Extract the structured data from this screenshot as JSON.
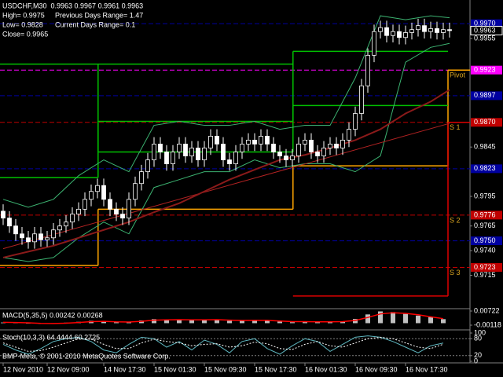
{
  "chart_data": [
    {
      "type": "candlestick",
      "title": "USDCHF,M30  0.9963 0.9967 0.9961 0.9963",
      "info": [
        "High= 0.9975",
        "Previous Days Range= 1.47",
        "Low= 0.9828",
        "Current Days Range= 0.1",
        "Close= 0.9965"
      ],
      "xlim": [
        -0.5,
        74.25
      ],
      "xticks": [
        {
          "value": 0,
          "label": "12 Nov 2010"
        },
        {
          "value": 7,
          "label": "12 Nov 09:00"
        },
        {
          "value": 16,
          "label": "14 Nov 17:30"
        },
        {
          "value": 24,
          "label": "15 Nov 01:30"
        },
        {
          "value": 32,
          "label": "15 Nov 09:30"
        },
        {
          "value": 40,
          "label": "15 Nov 17:30"
        },
        {
          "value": 48,
          "label": "16 Nov 01:30"
        },
        {
          "value": 56,
          "label": "16 Nov 09:30"
        },
        {
          "value": 64,
          "label": "16 Nov 17:30"
        }
      ],
      "ylim": [
        0.9682,
        0.9994
      ],
      "yticks": [
        0.9955,
        0.9845,
        0.9795,
        0.9765,
        {
          "value": 0.974,
          "label": "0.9740"
        },
        0.9715
      ],
      "up_color": "#000000",
      "down_color": "#ffffff",
      "outline_color": "#ffffff",
      "open": [
        0.978,
        0.9773,
        0.9765,
        0.9757,
        0.9753,
        0.9749,
        0.9757,
        0.9751,
        0.9753,
        0.9761,
        0.9765,
        0.9769,
        0.9777,
        0.9782,
        0.9792,
        0.98,
        0.9806,
        0.9792,
        0.9782,
        0.9777,
        0.9773,
        0.9792,
        0.9808,
        0.982,
        0.9832,
        0.9848,
        0.984,
        0.9828,
        0.984,
        0.9848,
        0.9836,
        0.9844,
        0.9832,
        0.9844,
        0.9856,
        0.9848,
        0.9832,
        0.9828,
        0.984,
        0.9848,
        0.9852,
        0.9848,
        0.9856,
        0.9848,
        0.984,
        0.9836,
        0.9832,
        0.9836,
        0.9848,
        0.9852,
        0.984,
        0.9836,
        0.9844,
        0.9848,
        0.9844,
        0.9852,
        0.9863,
        0.9879,
        0.9907,
        0.9938,
        0.9962,
        0.9966,
        0.9958,
        0.9962,
        0.9956,
        0.9961,
        0.9964,
        0.9968,
        0.9962,
        0.9965,
        0.9961,
        0.9964
      ],
      "high": [
        0.9787,
        0.978,
        0.9772,
        0.9764,
        0.976,
        0.9764,
        0.9764,
        0.976,
        0.9768,
        0.9772,
        0.9776,
        0.9784,
        0.9789,
        0.9799,
        0.9807,
        0.9813,
        0.9813,
        0.9799,
        0.9789,
        0.9784,
        0.9799,
        0.9815,
        0.9827,
        0.9839,
        0.9855,
        0.9855,
        0.9847,
        0.9847,
        0.9855,
        0.9855,
        0.9851,
        0.9851,
        0.9851,
        0.9863,
        0.9863,
        0.9855,
        0.9839,
        0.9847,
        0.9855,
        0.9859,
        0.9859,
        0.9863,
        0.9863,
        0.9855,
        0.9847,
        0.9843,
        0.9843,
        0.9855,
        0.9859,
        0.9859,
        0.9847,
        0.9851,
        0.9855,
        0.9855,
        0.9859,
        0.987,
        0.9886,
        0.9914,
        0.9945,
        0.9969,
        0.9973,
        0.9973,
        0.9969,
        0.9969,
        0.9968,
        0.9971,
        0.9975,
        0.9975,
        0.9972,
        0.9972,
        0.9971,
        0.9971
      ],
      "low": [
        0.9766,
        0.9758,
        0.975,
        0.9746,
        0.9742,
        0.9742,
        0.9744,
        0.9744,
        0.9746,
        0.9754,
        0.9758,
        0.9762,
        0.977,
        0.9775,
        0.9785,
        0.9793,
        0.9785,
        0.9775,
        0.977,
        0.9766,
        0.9766,
        0.9785,
        0.9801,
        0.9813,
        0.9825,
        0.9833,
        0.9821,
        0.9821,
        0.9833,
        0.9829,
        0.9829,
        0.9825,
        0.9825,
        0.9837,
        0.9841,
        0.9825,
        0.9821,
        0.9821,
        0.9833,
        0.9841,
        0.9841,
        0.9841,
        0.9841,
        0.9833,
        0.9829,
        0.9825,
        0.9825,
        0.9829,
        0.9841,
        0.9833,
        0.9829,
        0.9829,
        0.9837,
        0.9837,
        0.9837,
        0.9845,
        0.9856,
        0.9872,
        0.99,
        0.9931,
        0.9955,
        0.9951,
        0.9951,
        0.9949,
        0.9949,
        0.9954,
        0.9957,
        0.9955,
        0.9955,
        0.9954,
        0.9954,
        0.9956
      ],
      "close": [
        0.9773,
        0.9765,
        0.9757,
        0.9753,
        0.9749,
        0.9757,
        0.9751,
        0.9753,
        0.9761,
        0.9765,
        0.9769,
        0.9777,
        0.9782,
        0.9792,
        0.98,
        0.9806,
        0.9792,
        0.9782,
        0.9777,
        0.9773,
        0.9792,
        0.9808,
        0.982,
        0.9832,
        0.9848,
        0.984,
        0.9828,
        0.984,
        0.9848,
        0.9836,
        0.9844,
        0.9832,
        0.9844,
        0.9856,
        0.9848,
        0.9832,
        0.9828,
        0.984,
        0.9848,
        0.9852,
        0.9848,
        0.9856,
        0.9848,
        0.984,
        0.9836,
        0.9832,
        0.9836,
        0.9848,
        0.9852,
        0.984,
        0.9836,
        0.9844,
        0.9848,
        0.9844,
        0.9852,
        0.9863,
        0.9879,
        0.9907,
        0.9938,
        0.9962,
        0.9966,
        0.9958,
        0.9962,
        0.9956,
        0.9961,
        0.9964,
        0.9968,
        0.9962,
        0.9965,
        0.9961,
        0.9964,
        0.9963
      ],
      "lines": [
        {
          "color": "#3cb371",
          "width": 1,
          "x": [
            0,
            4,
            8,
            12,
            16,
            20,
            24,
            28,
            32,
            36,
            40,
            44,
            48,
            52,
            56,
            60,
            64,
            68,
            71
          ],
          "values": [
            0.9792,
            0.9784,
            0.9792,
            0.9816,
            0.9832,
            0.982,
            0.9867,
            0.9871,
            0.9867,
            0.9867,
            0.9871,
            0.9863,
            0.9867,
            0.9867,
            0.9915,
            0.9978,
            0.9974,
            0.9978,
            0.9976
          ]
        },
        {
          "color": "#3cb371",
          "width": 1,
          "x": [
            0,
            4,
            8,
            12,
            16,
            20,
            24,
            28,
            32,
            36,
            40,
            44,
            48,
            52,
            56,
            60,
            64,
            68,
            71
          ],
          "values": [
            0.9733,
            0.9729,
            0.9733,
            0.9753,
            0.9769,
            0.9757,
            0.9804,
            0.9812,
            0.982,
            0.982,
            0.9832,
            0.9824,
            0.9828,
            0.9828,
            0.982,
            0.9836,
            0.9931,
            0.9946,
            0.995
          ]
        },
        {
          "color": "#b22222",
          "width": 1,
          "x": [
            0,
            71
          ],
          "values": [
            0.9742,
            0.9869
          ]
        },
        {
          "color": "#8b1a1a",
          "width": 2,
          "x": [
            0,
            4,
            8,
            12,
            16,
            20,
            24,
            28,
            32,
            36,
            40,
            44,
            48,
            52,
            56,
            60,
            64,
            68,
            71
          ],
          "values": [
            0.9733,
            0.9739,
            0.9745,
            0.9753,
            0.9761,
            0.9769,
            0.9779,
            0.9788,
            0.98,
            0.9812,
            0.9822,
            0.9832,
            0.9837,
            0.9844,
            0.9852,
            0.9863,
            0.9879,
            0.9891,
            0.9903
          ]
        }
      ],
      "steps": {
        "x": [
          -0.5,
          15.1,
          46.1,
          70.75,
          74.25
        ],
        "series": [
          {
            "color": "#ffa500",
            "values": [
              0.9725,
              0.9782,
              0.9826,
              0.9923
            ]
          },
          {
            "color": "#00c000",
            "values": [
              0.9814,
              0.9871,
              0.9887,
              null
            ]
          },
          {
            "color": "#00c000",
            "values": [
              0.9929,
              0.984,
              0.9942,
              null
            ]
          },
          {
            "color": "#00c000",
            "values": [
              null,
              0.9929,
              null,
              null
            ]
          },
          {
            "color": "#dd0000",
            "values": [
              null,
              null,
              0.9694,
              0.987
            ]
          }
        ]
      },
      "levels": [
        {
          "value": 0.997,
          "label": "0.9970",
          "color": "#0000a0"
        },
        {
          "value": 0.9923,
          "color": "#ff00ff"
        },
        {
          "value": 0.9897,
          "color": "#0000a0"
        },
        {
          "value": 0.987,
          "label": "0.9870",
          "color": "#c00000"
        },
        {
          "value": 0.9823,
          "color": "#0000a0"
        },
        {
          "value": 0.9776,
          "color": "#c00000"
        },
        {
          "value": 0.975,
          "label": "0.9750",
          "color": "#0000a0"
        },
        {
          "value": 0.9723,
          "color": "#c00000"
        }
      ],
      "price": 0.9963,
      "pivot_labels": [
        {
          "text": "Pivot",
          "value": 0.9923
        },
        {
          "text": "S 1",
          "value": 0.987
        },
        {
          "text": "S 2",
          "value": 0.9776
        },
        {
          "text": "S 3",
          "value": 0.9723
        }
      ],
      "pivot_label_color": "#daa520"
    },
    {
      "type": "bar",
      "title": "MACD(5,35,5) 0.00242 0.00268",
      "ylim": [
        -0.00118,
        0.00722
      ],
      "yticks": [
        0.00722,
        -0.00118
      ],
      "x": [
        0,
        2,
        4,
        6,
        8,
        10,
        12,
        14,
        16,
        18,
        20,
        22,
        24,
        26,
        28,
        30,
        32,
        34,
        36,
        38,
        40,
        42,
        44,
        46,
        48,
        50,
        52,
        54,
        56,
        58,
        60,
        62,
        64,
        66,
        68,
        70
      ],
      "series": [
        {
          "kind": "bar",
          "color": "#c0c0c0",
          "values": [
            0.0004,
            0.0002,
            -0.0002,
            -0.0004,
            -0.0001,
            0.0003,
            0.0008,
            0.0014,
            0.001,
            0.0005,
            0.0008,
            0.0016,
            0.0024,
            0.0021,
            0.0022,
            0.0019,
            0.002,
            0.0022,
            0.0014,
            0.0016,
            0.0018,
            0.0017,
            0.001,
            0.0006,
            0.001,
            0.0008,
            0.0009,
            0.0011,
            0.0025,
            0.0052,
            0.007,
            0.0066,
            0.0055,
            0.0045,
            0.0036,
            0.0024
          ]
        },
        {
          "kind": "line",
          "color": "#ff0000",
          "values": [
            0.0005,
            0.0004,
            0.0002,
            -0.0001,
            -0.0002,
            0.0,
            0.0004,
            0.0009,
            0.0011,
            0.0008,
            0.0007,
            0.0011,
            0.0018,
            0.002,
            0.0021,
            0.002,
            0.002,
            0.0021,
            0.0018,
            0.0016,
            0.0017,
            0.0017,
            0.0013,
            0.0009,
            0.0009,
            0.0008,
            0.0008,
            0.0009,
            0.0016,
            0.0034,
            0.0055,
            0.0062,
            0.0058,
            0.005,
            0.0038,
            0.0027
          ]
        }
      ]
    },
    {
      "type": "line",
      "title": "Stoch(10,3,3) 64.4444 60.2725",
      "footer": "BMP-Meta, © 2001-2010 MetaQuotes Software Corp.",
      "ylim": [
        0,
        100
      ],
      "yticks": [
        100,
        80,
        20,
        0
      ],
      "levels": [
        80,
        20
      ],
      "x": [
        0,
        2,
        4,
        6,
        8,
        10,
        12,
        14,
        16,
        18,
        20,
        22,
        24,
        26,
        28,
        30,
        32,
        34,
        36,
        38,
        40,
        42,
        44,
        46,
        48,
        50,
        52,
        54,
        56,
        58,
        60,
        62,
        64,
        66,
        68,
        70
      ],
      "series": [
        {
          "color": "#5fb7c0",
          "style": "solid",
          "values": [
            60,
            40,
            25,
            45,
            70,
            80,
            85,
            70,
            40,
            30,
            60,
            85,
            80,
            50,
            70,
            40,
            75,
            60,
            30,
            70,
            80,
            45,
            25,
            55,
            80,
            70,
            35,
            60,
            85,
            90,
            85,
            70,
            50,
            30,
            55,
            64.4444
          ]
        },
        {
          "color": "#ffffff",
          "style": "dotted",
          "values": [
            65,
            50,
            35,
            38,
            50,
            65,
            80,
            78,
            60,
            45,
            45,
            65,
            78,
            70,
            65,
            55,
            60,
            62,
            50,
            55,
            68,
            62,
            45,
            42,
            60,
            70,
            55,
            50,
            65,
            80,
            85,
            80,
            65,
            50,
            45,
            60.2725
          ]
        }
      ]
    }
  ]
}
